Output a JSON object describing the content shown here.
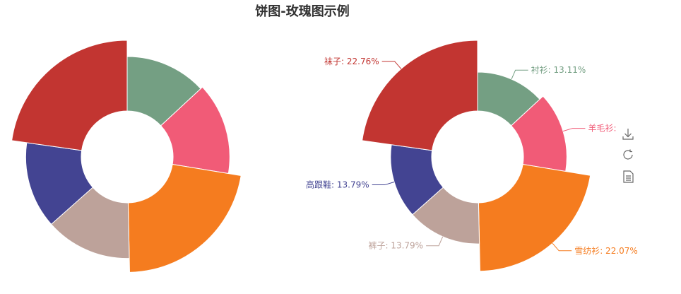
{
  "chart_data": {
    "type": "pie",
    "title": "饼图-玫瑰图示例",
    "categories": [
      "衬衫",
      "羊毛衫",
      "雪纺衫",
      "裤子",
      "高跟鞋",
      "袜子"
    ],
    "colors": [
      "#749f83",
      "#f15b77",
      "#f57c1f",
      "#bda29a",
      "#434492",
      "#c23531"
    ],
    "series": [
      {
        "name": "",
        "rose": false,
        "values": [
          13.11,
          14.48,
          22.07,
          13.79,
          13.79,
          22.76
        ],
        "labels": [
          "",
          "",
          "",
          "",
          "",
          ""
        ]
      },
      {
        "name": "",
        "rose": "radius",
        "values": [
          13.11,
          14.48,
          22.07,
          13.79,
          13.79,
          22.76
        ],
        "labels": [
          "衬衫: 13.11%",
          "羊毛衫: ",
          "雪纺衫: 22.07%",
          "裤子: 13.79%",
          "高跟鞋: 13.79%",
          "袜子: 22.76%"
        ]
      }
    ],
    "legend": "none"
  },
  "toolbox": {
    "icons": [
      "download-icon",
      "refresh-icon",
      "data-view-icon"
    ]
  }
}
